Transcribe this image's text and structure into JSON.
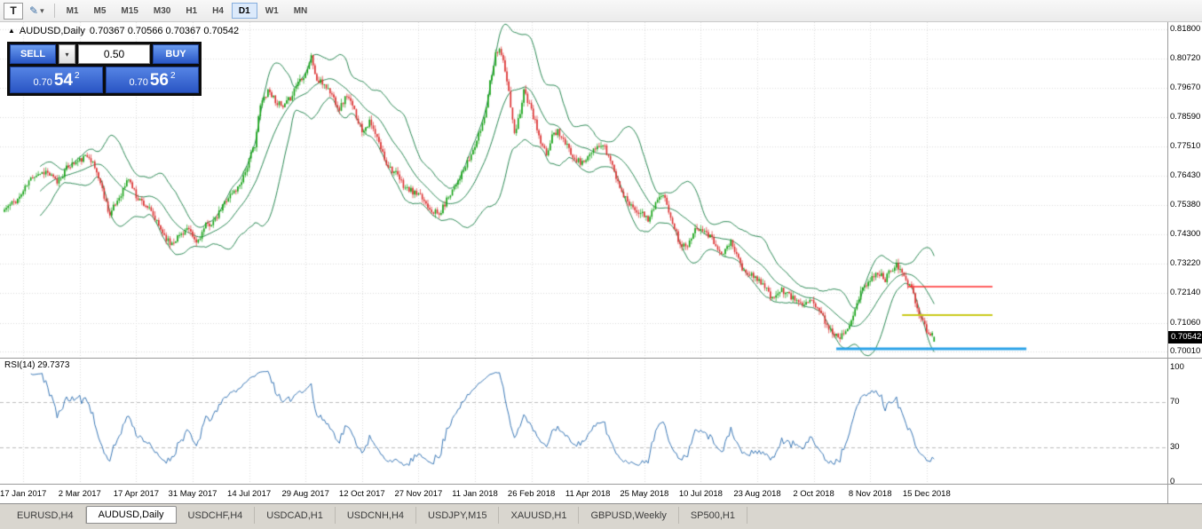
{
  "toolbar": {
    "tool_t": "T",
    "timeframes": [
      {
        "label": "M1",
        "active": false
      },
      {
        "label": "M5",
        "active": false
      },
      {
        "label": "M15",
        "active": false
      },
      {
        "label": "M30",
        "active": false
      },
      {
        "label": "H1",
        "active": false
      },
      {
        "label": "H4",
        "active": false
      },
      {
        "label": "D1",
        "active": true
      },
      {
        "label": "W1",
        "active": false
      },
      {
        "label": "MN",
        "active": false
      }
    ]
  },
  "icons": {
    "symbol_marker": "▲",
    "dropdown_small": "▾",
    "draw_tool": "✎"
  },
  "chart": {
    "symbol_period": "AUDUSD,Daily",
    "ohlc_text": "0.70367 0.70566 0.70367 0.70542"
  },
  "one_click": {
    "sell_label": "SELL",
    "buy_label": "BUY",
    "volume": "0.50",
    "sell_price": {
      "prefix": "0.70",
      "big": "54",
      "sup": "2"
    },
    "buy_price": {
      "prefix": "0.70",
      "big": "56",
      "sup": "2"
    }
  },
  "price_scale": {
    "labels": [
      "0.81800",
      "0.80720",
      "0.79670",
      "0.78590",
      "0.77510",
      "0.76430",
      "0.75380",
      "0.74300",
      "0.73220",
      "0.72140",
      "0.71060",
      "0.70010"
    ],
    "current": "0.70542"
  },
  "rsi_panel": {
    "label": "RSI(14) 29.7373",
    "scale_labels": [
      "100",
      "70",
      "30",
      "0"
    ]
  },
  "time_scale": {
    "labels": [
      "17 Jan 2017",
      "2 Mar 2017",
      "17 Apr 2017",
      "31 May 2017",
      "14 Jul 2017",
      "29 Aug 2017",
      "12 Oct 2017",
      "27 Nov 2017",
      "11 Jan 2018",
      "26 Feb 2018",
      "11 Apr 2018",
      "25 May 2018",
      "10 Jul 2018",
      "23 Aug 2018",
      "2 Oct 2018",
      "8 Nov 2018",
      "15 Dec 2018"
    ]
  },
  "tabs": [
    {
      "label": "EURUSD,H4",
      "active": false
    },
    {
      "label": "AUDUSD,Daily",
      "active": true
    },
    {
      "label": "USDCHF,H4",
      "active": false
    },
    {
      "label": "USDCAD,H1",
      "active": false
    },
    {
      "label": "USDCNH,H4",
      "active": false
    },
    {
      "label": "USDJPY,M15",
      "active": false
    },
    {
      "label": "XAUUSD,H1",
      "active": false
    },
    {
      "label": "GBPUSD,Weekly",
      "active": false
    },
    {
      "label": "SP500,H1",
      "active": false
    }
  ],
  "chart_data": {
    "type": "candlestick",
    "symbol": "AUDUSD",
    "period": "Daily",
    "last_candle": {
      "o": 0.70367,
      "h": 0.70566,
      "l": 0.70367,
      "c": 0.70542
    },
    "candle_count": 495,
    "seed": 11,
    "up_color": "#17a317",
    "down_color": "#dc3232",
    "bollinger": {
      "period": 20,
      "deviation": 2,
      "color": "#2e8b57"
    },
    "rsi": {
      "period": 14,
      "value": 29.7373,
      "color": "#3d7ab8",
      "levels": [
        70,
        30
      ]
    },
    "axis": {
      "top_price": 0.818,
      "bottom_price": 0.7001,
      "rsi_max": 100,
      "rsi_min": 0
    },
    "time_ticks_idx": [
      10,
      40,
      70,
      100,
      130,
      160,
      190,
      220,
      250,
      280,
      310,
      340,
      370,
      400,
      430,
      460,
      490
    ],
    "hlines": [
      {
        "price": 0.7238,
        "color": "#ff2b2b",
        "width": 1.6,
        "i1": 480,
        "i2": 525
      },
      {
        "price": 0.7134,
        "color": "#c9c919",
        "width": 2,
        "i1": 477,
        "i2": 525
      },
      {
        "price": 0.7011,
        "color": "#2ba3e8",
        "width": 3,
        "i1": 442,
        "i2": 543
      }
    ],
    "close_anchors": [
      [
        0,
        0.752
      ],
      [
        8,
        0.7565
      ],
      [
        15,
        0.7645
      ],
      [
        22,
        0.766
      ],
      [
        28,
        0.762
      ],
      [
        34,
        0.768
      ],
      [
        40,
        0.77
      ],
      [
        45,
        0.772
      ],
      [
        50,
        0.764
      ],
      [
        56,
        0.75
      ],
      [
        62,
        0.758
      ],
      [
        66,
        0.7635
      ],
      [
        70,
        0.757
      ],
      [
        76,
        0.753
      ],
      [
        82,
        0.746
      ],
      [
        88,
        0.7395
      ],
      [
        92,
        0.742
      ],
      [
        97,
        0.745
      ],
      [
        102,
        0.7398
      ],
      [
        107,
        0.746
      ],
      [
        112,
        0.748
      ],
      [
        118,
        0.756
      ],
      [
        124,
        0.76
      ],
      [
        128,
        0.766
      ],
      [
        133,
        0.776
      ],
      [
        136,
        0.79
      ],
      [
        140,
        0.796
      ],
      [
        144,
        0.792
      ],
      [
        148,
        0.789
      ],
      [
        152,
        0.793
      ],
      [
        156,
        0.799
      ],
      [
        160,
        0.802
      ],
      [
        163,
        0.808
      ],
      [
        166,
        0.799
      ],
      [
        170,
        0.798
      ],
      [
        174,
        0.794
      ],
      [
        178,
        0.789
      ],
      [
        182,
        0.794
      ],
      [
        186,
        0.788
      ],
      [
        190,
        0.781
      ],
      [
        194,
        0.784
      ],
      [
        198,
        0.778
      ],
      [
        203,
        0.769
      ],
      [
        208,
        0.765
      ],
      [
        213,
        0.76
      ],
      [
        218,
        0.758
      ],
      [
        222,
        0.756
      ],
      [
        227,
        0.752
      ],
      [
        231,
        0.75
      ],
      [
        236,
        0.757
      ],
      [
        240,
        0.762
      ],
      [
        244,
        0.766
      ],
      [
        248,
        0.772
      ],
      [
        252,
        0.779
      ],
      [
        255,
        0.786
      ],
      [
        258,
        0.799
      ],
      [
        261,
        0.809
      ],
      [
        263,
        0.8115
      ],
      [
        265,
        0.806
      ],
      [
        268,
        0.795
      ],
      [
        271,
        0.779
      ],
      [
        274,
        0.788
      ],
      [
        276,
        0.796
      ],
      [
        279,
        0.79
      ],
      [
        282,
        0.784
      ],
      [
        285,
        0.776
      ],
      [
        288,
        0.772
      ],
      [
        291,
        0.779
      ],
      [
        294,
        0.781
      ],
      [
        298,
        0.776
      ],
      [
        302,
        0.772
      ],
      [
        306,
        0.769
      ],
      [
        310,
        0.771
      ],
      [
        314,
        0.774
      ],
      [
        318,
        0.776
      ],
      [
        322,
        0.77
      ],
      [
        326,
        0.762
      ],
      [
        330,
        0.756
      ],
      [
        334,
        0.753
      ],
      [
        338,
        0.751
      ],
      [
        342,
        0.748
      ],
      [
        346,
        0.755
      ],
      [
        350,
        0.757
      ],
      [
        354,
        0.75
      ],
      [
        358,
        0.741
      ],
      [
        362,
        0.738
      ],
      [
        366,
        0.744
      ],
      [
        370,
        0.746
      ],
      [
        374,
        0.743
      ],
      [
        378,
        0.739
      ],
      [
        382,
        0.736
      ],
      [
        386,
        0.74
      ],
      [
        390,
        0.734
      ],
      [
        392,
        0.73
      ],
      [
        396,
        0.728
      ],
      [
        400,
        0.727
      ],
      [
        404,
        0.724
      ],
      [
        408,
        0.719
      ],
      [
        412,
        0.723
      ],
      [
        416,
        0.721
      ],
      [
        420,
        0.719
      ],
      [
        424,
        0.718
      ],
      [
        428,
        0.7195
      ],
      [
        432,
        0.716
      ],
      [
        436,
        0.711
      ],
      [
        440,
        0.707
      ],
      [
        444,
        0.7055
      ],
      [
        448,
        0.709
      ],
      [
        452,
        0.716
      ],
      [
        456,
        0.723
      ],
      [
        460,
        0.726
      ],
      [
        464,
        0.729
      ],
      [
        468,
        0.7265
      ],
      [
        471,
        0.73
      ],
      [
        474,
        0.7325
      ],
      [
        477,
        0.7285
      ],
      [
        480,
        0.725
      ],
      [
        483,
        0.721
      ],
      [
        486,
        0.714
      ],
      [
        489,
        0.709
      ],
      [
        492,
        0.7062
      ],
      [
        494,
        0.70542
      ]
    ]
  }
}
